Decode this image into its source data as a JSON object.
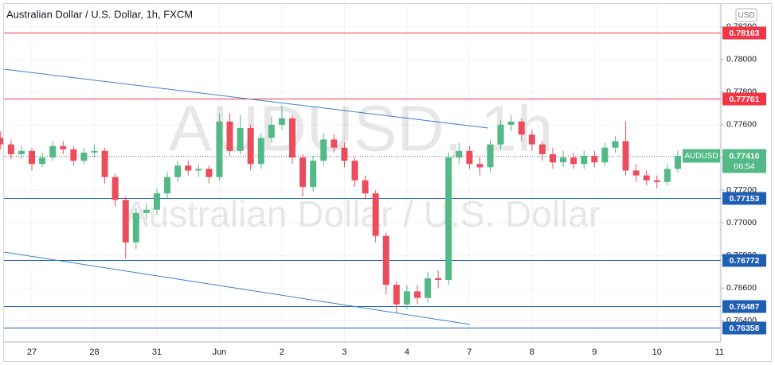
{
  "chart_data": {
    "type": "candlestick",
    "title": "Australian Dollar / U.S. Dollar, 1h, FXCM",
    "watermark": "AUDUSD, 1h",
    "watermark_subtitle": "Australian Dollar / U.S. Dollar",
    "currency": "USD",
    "categories": [
      null,
      null,
      null,
      "27",
      null,
      null,
      null,
      null,
      null,
      "28",
      null,
      null,
      null,
      null,
      null,
      "31",
      null,
      null,
      null,
      null,
      null,
      "Jun",
      null,
      null,
      null,
      null,
      null,
      "2",
      null,
      null,
      null,
      null,
      null,
      "3",
      null,
      null,
      null,
      null,
      null,
      "4",
      null,
      null,
      null,
      null,
      null,
      "7",
      null,
      null,
      null,
      null,
      null,
      "8",
      null,
      null,
      null,
      null,
      null,
      "9",
      null,
      null,
      null,
      null,
      null,
      "10",
      null,
      null,
      null,
      null,
      null,
      "11"
    ],
    "open": [
      0.7752,
      0.7748,
      0.7742,
      0.7744,
      0.7736,
      0.774,
      0.7747,
      0.7745,
      0.7738,
      0.7743,
      0.7744,
      0.7728,
      0.7714,
      0.7688,
      0.7706,
      0.7708,
      0.7718,
      0.7728,
      0.7735,
      0.7732,
      0.7733,
      0.7728,
      0.7762,
      0.7744,
      0.7758,
      0.7736,
      0.7752,
      0.776,
      0.7764,
      0.774,
      0.7722,
      0.7738,
      0.7751,
      0.7746,
      0.7738,
      0.7726,
      0.7718,
      0.7692,
      0.7662,
      0.765,
      0.7658,
      0.7654,
      0.7666,
      0.7665,
      0.774,
      0.7744,
      0.7736,
      0.7734,
      0.7748,
      0.776,
      0.7762,
      0.7754,
      0.7748,
      0.7742,
      0.7737,
      0.774,
      0.7736,
      0.7741,
      0.7737,
      0.7746,
      0.775,
      0.7732,
      0.7729,
      0.7726,
      0.7725,
      0.7733,
      null,
      null,
      null,
      null
    ],
    "high": [
      0.7756,
      0.7751,
      0.7747,
      0.7746,
      0.7743,
      0.775,
      0.775,
      0.7747,
      0.7746,
      0.7748,
      0.7746,
      0.773,
      0.7716,
      0.7709,
      0.7712,
      0.7721,
      0.7731,
      0.7738,
      0.7738,
      0.7736,
      0.7735,
      0.7767,
      0.7767,
      0.7766,
      0.776,
      0.7755,
      0.7765,
      0.7772,
      0.7766,
      0.7742,
      0.7741,
      0.7755,
      0.7754,
      0.7749,
      0.774,
      0.7729,
      0.772,
      0.7694,
      0.7664,
      0.7662,
      0.7662,
      0.767,
      0.7671,
      0.7743,
      0.7749,
      0.7747,
      0.774,
      0.7751,
      0.7763,
      0.7766,
      0.7764,
      0.7757,
      0.775,
      0.7746,
      0.7744,
      0.7743,
      0.7744,
      0.7744,
      0.7749,
      0.7753,
      0.7762,
      0.7736,
      0.7732,
      0.7729,
      0.7736,
      0.7744,
      null,
      null,
      null,
      null
    ],
    "low": [
      0.7745,
      0.7739,
      0.7739,
      0.7732,
      0.7734,
      0.7738,
      0.7742,
      0.7735,
      0.7736,
      0.774,
      0.7724,
      0.771,
      0.7678,
      0.7684,
      0.7702,
      0.7705,
      0.7715,
      0.7725,
      0.7729,
      0.7728,
      0.7724,
      0.7726,
      0.7741,
      0.7742,
      0.7732,
      0.7733,
      0.7749,
      0.7757,
      0.7736,
      0.7716,
      0.7719,
      0.7735,
      0.7743,
      0.7734,
      0.7722,
      0.7714,
      0.7688,
      0.7656,
      0.7645,
      0.7647,
      0.765,
      0.7651,
      0.766,
      0.7662,
      0.7736,
      0.7733,
      0.7729,
      0.7731,
      0.7745,
      0.7756,
      0.775,
      0.7744,
      0.7738,
      0.7733,
      0.7734,
      0.7733,
      0.7733,
      0.7734,
      0.7735,
      0.7743,
      0.7729,
      0.7725,
      0.7723,
      0.7721,
      0.7723,
      0.7731,
      null,
      null,
      null,
      null
    ],
    "close": [
      0.7748,
      0.7742,
      0.7744,
      0.7736,
      0.774,
      0.7747,
      0.7745,
      0.7738,
      0.7743,
      0.7744,
      0.7728,
      0.7714,
      0.7688,
      0.7706,
      0.7708,
      0.7718,
      0.7728,
      0.7735,
      0.7732,
      0.7733,
      0.7728,
      0.7762,
      0.7744,
      0.7758,
      0.7736,
      0.7752,
      0.776,
      0.7764,
      0.774,
      0.7722,
      0.7738,
      0.7751,
      0.7746,
      0.7738,
      0.7726,
      0.7718,
      0.7692,
      0.7662,
      0.765,
      0.7658,
      0.7654,
      0.7666,
      0.7665,
      0.774,
      0.7744,
      0.7736,
      0.7734,
      0.7748,
      0.776,
      0.7762,
      0.7754,
      0.7748,
      0.7742,
      0.7737,
      0.774,
      0.7736,
      0.7741,
      0.7737,
      0.7746,
      0.775,
      0.7732,
      0.7729,
      0.7726,
      0.7725,
      0.7733,
      0.7741,
      null,
      null,
      null,
      null
    ],
    "up_color": "#53b987",
    "down_color": "#eb4d5c",
    "ylim": [
      0.7628,
      0.7834
    ],
    "yticks": [
      {
        "value": 0.782,
        "label": "0.78200"
      },
      {
        "value": 0.78,
        "label": "0.78000"
      },
      {
        "value": 0.778,
        "label": "0.77800"
      },
      {
        "value": 0.776,
        "label": "0.77600"
      },
      {
        "value": 0.774,
        "label": "0.77400"
      },
      {
        "value": 0.772,
        "label": "0.77200"
      },
      {
        "value": 0.77,
        "label": "0.77000"
      },
      {
        "value": 0.768,
        "label": "0.76800"
      },
      {
        "value": 0.766,
        "label": "0.76600"
      },
      {
        "value": 0.764,
        "label": "0.76400"
      }
    ],
    "grid": true,
    "levels": [
      {
        "value": 0.78163,
        "color": "#f23645"
      },
      {
        "value": 0.77761,
        "color": "#f23645"
      },
      {
        "value": 0.77153,
        "color": "#1e5fb4"
      },
      {
        "value": 0.76772,
        "color": "#1e5fb4"
      },
      {
        "value": 0.76487,
        "color": "#1e5fb4"
      },
      {
        "value": 0.76358,
        "color": "#1e5fb4"
      }
    ],
    "last_price": {
      "symbol": "AUDUSD",
      "value": 0.7741,
      "label": "0.77410",
      "countdown": "06:54",
      "color": "#53b987"
    }
  }
}
